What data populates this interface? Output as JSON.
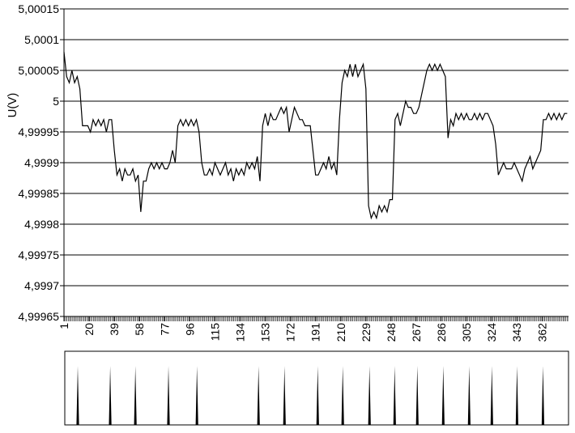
{
  "chart_data": [
    {
      "type": "line",
      "y_label": "U(V)",
      "color": "#000000",
      "grid": true,
      "xlim": [
        1,
        382
      ],
      "xticks": [
        1,
        20,
        39,
        58,
        77,
        96,
        115,
        134,
        153,
        172,
        191,
        210,
        229,
        248,
        267,
        286,
        305,
        324,
        343,
        362
      ],
      "ylim": [
        4.99965,
        5.00015
      ],
      "yticks": [
        {
          "value": 4.99965,
          "label": "4,99965"
        },
        {
          "value": 4.9997,
          "label": "4,9997"
        },
        {
          "value": 4.99975,
          "label": "4,99975"
        },
        {
          "value": 4.9998,
          "label": "4,9998"
        },
        {
          "value": 4.99985,
          "label": "4,99985"
        },
        {
          "value": 4.9999,
          "label": "4,9999"
        },
        {
          "value": 4.99995,
          "label": "4,99995"
        },
        {
          "value": 5,
          "label": "5"
        },
        {
          "value": 5.00005,
          "label": "5,00005"
        },
        {
          "value": 5.0001,
          "label": "5,0001"
        },
        {
          "value": 5.00015,
          "label": "5,00015"
        }
      ],
      "x": [
        1,
        3,
        5,
        7,
        9,
        11,
        13,
        15,
        17,
        19,
        21,
        23,
        25,
        27,
        29,
        31,
        33,
        35,
        37,
        39,
        41,
        43,
        45,
        47,
        49,
        51,
        53,
        55,
        57,
        59,
        61,
        63,
        65,
        67,
        69,
        71,
        73,
        75,
        77,
        79,
        81,
        83,
        85,
        87,
        89,
        91,
        93,
        95,
        97,
        99,
        101,
        103,
        105,
        107,
        109,
        111,
        113,
        115,
        117,
        119,
        121,
        123,
        125,
        127,
        129,
        131,
        133,
        135,
        137,
        139,
        141,
        143,
        145,
        147,
        149,
        151,
        153,
        155,
        157,
        159,
        161,
        163,
        165,
        167,
        169,
        171,
        173,
        175,
        177,
        179,
        181,
        183,
        185,
        187,
        189,
        191,
        193,
        195,
        197,
        199,
        201,
        203,
        205,
        207,
        209,
        211,
        213,
        215,
        217,
        219,
        221,
        223,
        225,
        227,
        229,
        231,
        233,
        235,
        237,
        239,
        241,
        243,
        245,
        247,
        249,
        251,
        253,
        255,
        257,
        259,
        261,
        263,
        265,
        267,
        269,
        271,
        273,
        275,
        277,
        279,
        281,
        283,
        285,
        287,
        289,
        291,
        293,
        295,
        297,
        299,
        301,
        303,
        305,
        307,
        309,
        311,
        313,
        315,
        317,
        319,
        321,
        323,
        325,
        327,
        329,
        331,
        333,
        335,
        337,
        339,
        341,
        343,
        345,
        347,
        349,
        351,
        353,
        355,
        357,
        359,
        361,
        363,
        365,
        367,
        369,
        371,
        373,
        375,
        377,
        379,
        381
      ],
      "values": [
        5.00008,
        5.00004,
        5.00003,
        5.00005,
        5.00003,
        5.00004,
        5.00002,
        4.99996,
        4.99996,
        4.99996,
        4.99995,
        4.99997,
        4.99996,
        4.99997,
        4.99996,
        4.99997,
        4.99995,
        4.99997,
        4.99997,
        4.99992,
        4.99988,
        4.99989,
        4.99987,
        4.99989,
        4.99988,
        4.99988,
        4.99989,
        4.99987,
        4.99988,
        4.99982,
        4.99987,
        4.99987,
        4.99989,
        4.9999,
        4.99989,
        4.9999,
        4.99989,
        4.9999,
        4.99989,
        4.99989,
        4.9999,
        4.99992,
        4.9999,
        4.99996,
        4.99997,
        4.99996,
        4.99997,
        4.99996,
        4.99997,
        4.99996,
        4.99997,
        4.99995,
        4.9999,
        4.99988,
        4.99988,
        4.99989,
        4.99988,
        4.9999,
        4.99989,
        4.99988,
        4.99989,
        4.9999,
        4.99988,
        4.99989,
        4.99987,
        4.99989,
        4.99988,
        4.99989,
        4.99988,
        4.9999,
        4.99989,
        4.9999,
        4.99989,
        4.99991,
        4.99987,
        4.99996,
        4.99998,
        4.99996,
        4.99998,
        4.99997,
        4.99997,
        4.99998,
        4.99999,
        4.99998,
        4.99999,
        4.99995,
        4.99997,
        4.99999,
        4.99998,
        4.99997,
        4.99997,
        4.99996,
        4.99996,
        4.99996,
        4.99992,
        4.99988,
        4.99988,
        4.99989,
        4.9999,
        4.99989,
        4.99991,
        4.99989,
        4.9999,
        4.99988,
        4.99997,
        5.00003,
        5.00005,
        5.00004,
        5.00006,
        5.00004,
        5.00006,
        5.00004,
        5.00005,
        5.00006,
        5.00002,
        4.99983,
        4.99981,
        4.99982,
        4.99981,
        4.99983,
        4.99982,
        4.99983,
        4.99982,
        4.99984,
        4.99984,
        4.99997,
        4.99998,
        4.99996,
        4.99998,
        5,
        4.99999,
        4.99999,
        4.99998,
        4.99998,
        4.99999,
        5.00001,
        5.00003,
        5.00005,
        5.00006,
        5.00005,
        5.00006,
        5.00005,
        5.00006,
        5.00005,
        5.00004,
        4.99994,
        4.99997,
        4.99996,
        4.99998,
        4.99997,
        4.99998,
        4.99997,
        4.99998,
        4.99997,
        4.99997,
        4.99998,
        4.99997,
        4.99998,
        4.99997,
        4.99998,
        4.99998,
        4.99997,
        4.99996,
        4.99993,
        4.99988,
        4.99989,
        4.9999,
        4.99989,
        4.99989,
        4.99989,
        4.9999,
        4.99989,
        4.99988,
        4.99987,
        4.99989,
        4.9999,
        4.99991,
        4.99989,
        4.9999,
        4.99991,
        4.99992,
        4.99997,
        4.99997,
        4.99998,
        4.99997,
        4.99998,
        4.99997,
        4.99998,
        4.99997,
        4.99998,
        4.99998
      ]
    },
    {
      "type": "spike",
      "color": "#000000",
      "xlim": [
        1,
        382
      ],
      "ylim": [
        0,
        1.25
      ],
      "x": [
        11.4,
        35.9,
        54.9,
        79.9,
        101.4,
        147.9,
        167.5,
        192.6,
        211.5,
        231.7,
        250.7,
        267.8,
        287.4,
        307,
        324.1,
        343.1,
        362.7
      ],
      "values": [
        1,
        1,
        1,
        1,
        1,
        1,
        1,
        1,
        1,
        1,
        1,
        1,
        1,
        1,
        1,
        1,
        1
      ]
    }
  ]
}
